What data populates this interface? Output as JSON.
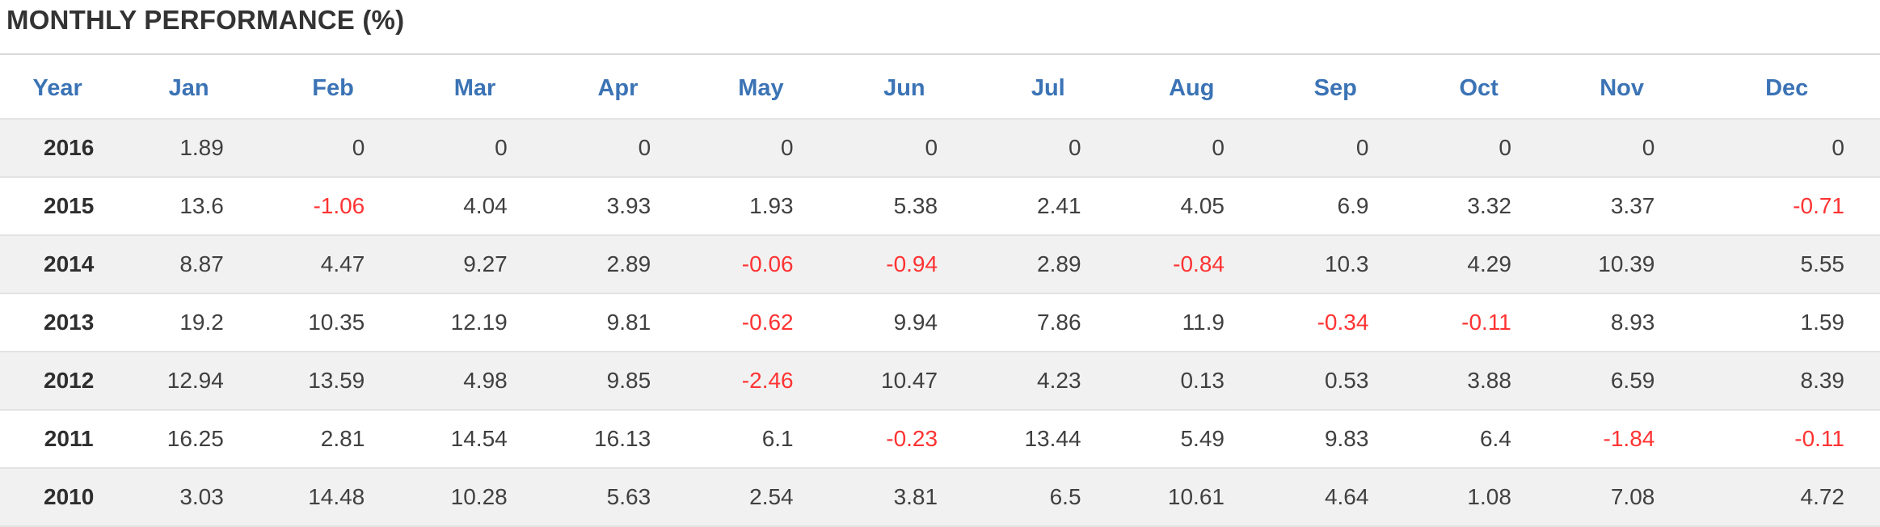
{
  "title": "MONTHLY PERFORMANCE (%)",
  "colors": {
    "header_text": "#3b73b5",
    "negative": "#ff3333",
    "text": "#404040",
    "stripe": "#f1f1f1"
  },
  "table": {
    "headers": [
      "Year",
      "Jan",
      "Feb",
      "Mar",
      "Apr",
      "May",
      "Jun",
      "Jul",
      "Aug",
      "Sep",
      "Oct",
      "Nov",
      "Dec"
    ],
    "rows": [
      {
        "year": "2016",
        "values": [
          "1.89",
          "0",
          "0",
          "0",
          "0",
          "0",
          "0",
          "0",
          "0",
          "0",
          "0",
          "0"
        ]
      },
      {
        "year": "2015",
        "values": [
          "13.6",
          "-1.06",
          "4.04",
          "3.93",
          "1.93",
          "5.38",
          "2.41",
          "4.05",
          "6.9",
          "3.32",
          "3.37",
          "-0.71"
        ]
      },
      {
        "year": "2014",
        "values": [
          "8.87",
          "4.47",
          "9.27",
          "2.89",
          "-0.06",
          "-0.94",
          "2.89",
          "-0.84",
          "10.3",
          "4.29",
          "10.39",
          "5.55"
        ]
      },
      {
        "year": "2013",
        "values": [
          "19.2",
          "10.35",
          "12.19",
          "9.81",
          "-0.62",
          "9.94",
          "7.86",
          "11.9",
          "-0.34",
          "-0.11",
          "8.93",
          "1.59"
        ]
      },
      {
        "year": "2012",
        "values": [
          "12.94",
          "13.59",
          "4.98",
          "9.85",
          "-2.46",
          "10.47",
          "4.23",
          "0.13",
          "0.53",
          "3.88",
          "6.59",
          "8.39"
        ]
      },
      {
        "year": "2011",
        "values": [
          "16.25",
          "2.81",
          "14.54",
          "16.13",
          "6.1",
          "-0.23",
          "13.44",
          "5.49",
          "9.83",
          "6.4",
          "-1.84",
          "-0.11"
        ]
      },
      {
        "year": "2010",
        "values": [
          "3.03",
          "14.48",
          "10.28",
          "5.63",
          "2.54",
          "3.81",
          "6.5",
          "10.61",
          "4.64",
          "1.08",
          "7.08",
          "4.72"
        ]
      }
    ]
  }
}
